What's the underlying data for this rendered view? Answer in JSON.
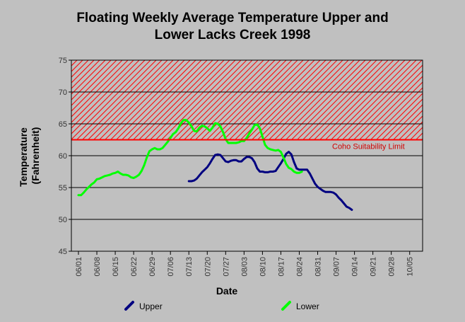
{
  "chart_data": {
    "type": "line",
    "title_line1": "Floating Weekly Average Temperature Upper and",
    "title_line2": "Lower Lacks Creek 1998",
    "xlabel": "Date",
    "ylabel_line1": "Temperature",
    "ylabel_line2": "(Fahrenheit)",
    "ylim": [
      45,
      75
    ],
    "yticks": [
      45,
      50,
      55,
      60,
      65,
      70,
      75
    ],
    "x_tick_labels": [
      "06/01",
      "06/08",
      "06/15",
      "06/22",
      "06/29",
      "07/06",
      "07/13",
      "07/20",
      "07/27",
      "08/03",
      "08/10",
      "08/17",
      "08/24",
      "08/31",
      "09/07",
      "09/14",
      "09/21",
      "09/28",
      "10/05"
    ],
    "grid": "horizontal",
    "threshold": {
      "value": 62.5,
      "label": "Coho Suitability Limit",
      "color": "#ff0000",
      "hatch_to": 75
    },
    "legend_position": "bottom",
    "series": [
      {
        "name": "Upper",
        "color": "#000080",
        "x_start": "07/13",
        "values": [
          56.0,
          56.0,
          56.1,
          56.4,
          56.9,
          57.4,
          57.8,
          58.2,
          58.8,
          59.5,
          60.1,
          60.2,
          60.1,
          59.6,
          59.1,
          59.0,
          59.2,
          59.3,
          59.3,
          59.1,
          59.1,
          59.5,
          59.8,
          59.8,
          59.6,
          59.0,
          58.0,
          57.5,
          57.5,
          57.4,
          57.4,
          57.5,
          57.5,
          57.6,
          58.2,
          58.8,
          59.5,
          60.3,
          60.6,
          60.2,
          59.0,
          58.0,
          57.8,
          57.8,
          57.8,
          57.8,
          57.2,
          56.4,
          55.6,
          55.1,
          54.8,
          54.5,
          54.3,
          54.3,
          54.3,
          54.2,
          53.9,
          53.4,
          53.0,
          52.5,
          52.0,
          51.8,
          51.5
        ]
      },
      {
        "name": "Lower",
        "color": "#00ff00",
        "x_start": "06/01",
        "values": [
          53.8,
          53.8,
          54.2,
          54.7,
          55.1,
          55.5,
          55.8,
          56.3,
          56.4,
          56.6,
          56.8,
          56.9,
          57.0,
          57.2,
          57.3,
          57.5,
          57.2,
          57.0,
          57.0,
          56.9,
          56.6,
          56.5,
          56.7,
          57.0,
          57.6,
          58.5,
          59.7,
          60.7,
          61.0,
          61.2,
          61.0,
          61.0,
          61.2,
          61.7,
          62.2,
          62.8,
          63.4,
          63.7,
          64.3,
          65.1,
          65.6,
          65.6,
          65.2,
          64.6,
          63.9,
          63.8,
          64.4,
          64.7,
          64.6,
          64.3,
          63.9,
          64.4,
          65.1,
          65.0,
          64.6,
          63.7,
          62.6,
          62.0,
          62.0,
          62.0,
          62.0,
          62.1,
          62.3,
          62.3,
          62.8,
          63.5,
          64.1,
          64.8,
          64.9,
          64.3,
          63.0,
          61.7,
          61.2,
          61.0,
          60.9,
          60.8,
          60.9,
          60.6,
          59.7,
          58.7,
          58.1,
          57.9,
          57.5,
          57.3,
          57.3,
          57.5
        ]
      }
    ]
  }
}
